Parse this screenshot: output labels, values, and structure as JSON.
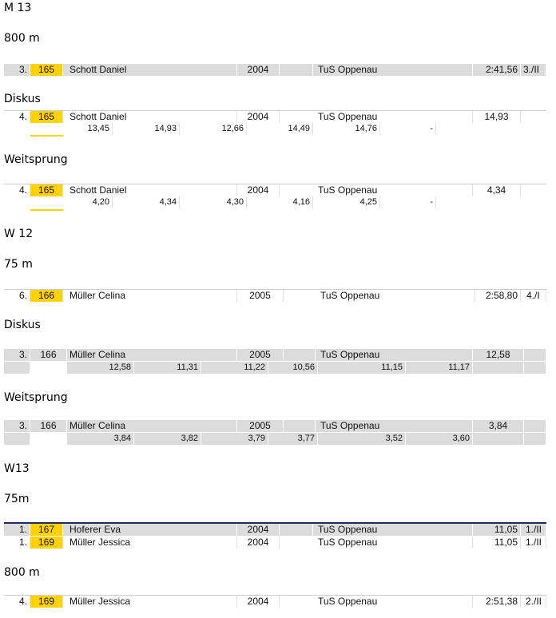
{
  "sections": [
    {
      "heading": "M 13"
    },
    {
      "heading": "800 m",
      "rows": [
        {
          "place": "3.",
          "bib": "165",
          "name": "Schott Daniel",
          "year": "2004",
          "club": "TuS Oppenau",
          "result": "2:41,56",
          "extra": "3./II"
        }
      ]
    },
    {
      "heading": "Diskus",
      "rows": [
        {
          "place": "4.",
          "bib": "165",
          "name": "Schott Daniel",
          "year": "2004",
          "club": "TuS Oppenau",
          "result": "14,93",
          "extra": "",
          "attempts": [
            "13,45",
            "14,93",
            "12,66",
            "14,49",
            "14,76",
            "-"
          ]
        }
      ]
    },
    {
      "heading": "Weitsprung",
      "rows": [
        {
          "place": "4.",
          "bib": "165",
          "name": "Schott Daniel",
          "year": "2004",
          "club": "TuS Oppenau",
          "result": "4,34",
          "extra": "",
          "attempts": [
            "4,20",
            "4,34",
            "4,30",
            "4,16",
            "4,25",
            "-"
          ]
        }
      ]
    },
    {
      "heading": "W 12"
    },
    {
      "heading": "75 m",
      "rows": [
        {
          "place": "6.",
          "bib": "166",
          "name": "Müller Celina",
          "year": "2005",
          "club": "TuS Oppenau",
          "result": "2:58,80",
          "extra": "4./I"
        }
      ]
    },
    {
      "heading": "Diskus",
      "rows": [
        {
          "place": "3.",
          "bib": "166",
          "name": "Müller Celina",
          "year": "2005",
          "club": "TuS Oppenau",
          "result": "12,58",
          "extra": "",
          "attempts": [
            "12,58",
            "11,31",
            "11,22",
            "10,56",
            "11,15",
            "11,17"
          ]
        }
      ]
    },
    {
      "heading": "Weitsprung",
      "rows": [
        {
          "place": "3.",
          "bib": "166",
          "name": "Müller Celina",
          "year": "2005",
          "club": "TuS Oppenau",
          "result": "3,84",
          "extra": "",
          "attempts": [
            "3,84",
            "3,82",
            "3,79",
            "3,77",
            "3,52",
            "3,60"
          ]
        }
      ]
    },
    {
      "heading": "W13"
    },
    {
      "heading": "75m",
      "rows": [
        {
          "place": "1.",
          "bib": "167",
          "name": "Hoferer Eva",
          "year": "2004",
          "club": "TuS Oppenau",
          "result": "11,05",
          "extra": "1./II"
        },
        {
          "place": "1.",
          "bib": "169",
          "name": "Müller Jessica",
          "year": "2004",
          "club": "TuS Oppenau",
          "result": "11,05",
          "extra": "1./II"
        }
      ]
    },
    {
      "heading": "800 m",
      "rows": [
        {
          "place": "4.",
          "bib": "169",
          "name": "Müller Jessica",
          "year": "2004",
          "club": "TuS Oppenau",
          "result": "2:51,38",
          "extra": "2./II"
        }
      ]
    }
  ],
  "colors": {
    "bib_highlight": "#ffd200",
    "row_gray": "#dcdcdc",
    "rule_navy": "#1f2a6b"
  }
}
